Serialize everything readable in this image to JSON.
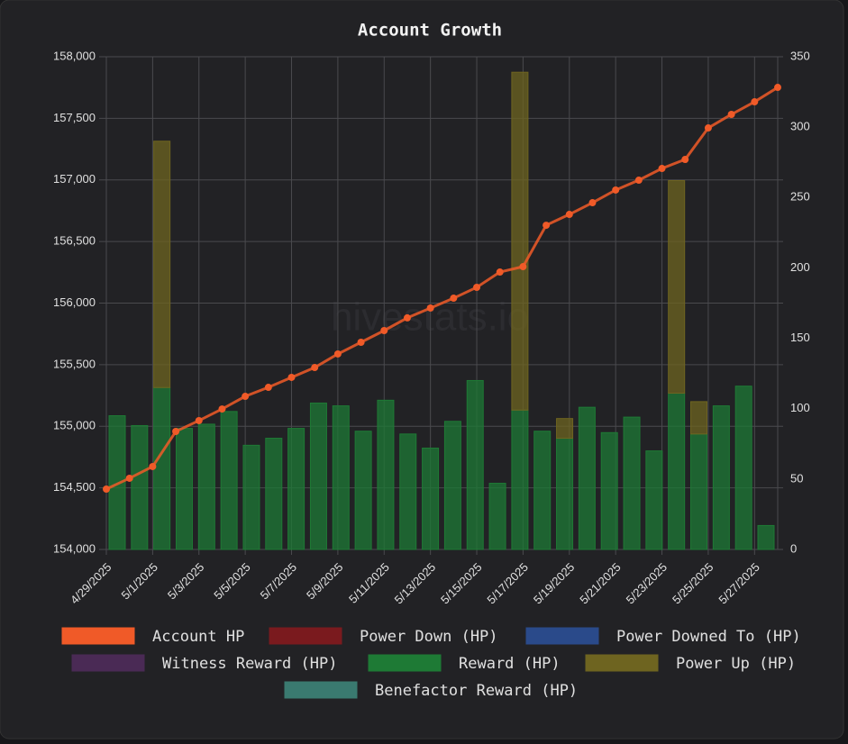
{
  "chart_data": {
    "type": "bar",
    "title": "Account Growth",
    "watermark": "hivestats.io",
    "categories": [
      "4/29/2025",
      null,
      "5/1/2025",
      null,
      "5/3/2025",
      null,
      "5/5/2025",
      null,
      "5/7/2025",
      null,
      "5/9/2025",
      null,
      "5/11/2025",
      null,
      "5/13/2025",
      null,
      "5/15/2025",
      null,
      "5/17/2025",
      null,
      "5/19/2025",
      null,
      "5/21/2025",
      null,
      "5/23/2025",
      null,
      "5/25/2025",
      null,
      "5/27/2025",
      null
    ],
    "ylim": [
      154000,
      158000
    ],
    "yticks": [
      {
        "value": 154000,
        "label": "154,000"
      },
      {
        "value": 154500,
        "label": "154,500"
      },
      {
        "value": 155000,
        "label": "155,000"
      },
      {
        "value": 155500,
        "label": "155,500"
      },
      {
        "value": 156000,
        "label": "156,000"
      },
      {
        "value": 156500,
        "label": "156,500"
      },
      {
        "value": 157000,
        "label": "157,000"
      },
      {
        "value": 157500,
        "label": "157,500"
      },
      {
        "value": 158000,
        "label": "158,000"
      }
    ],
    "y2lim": [
      0,
      350
    ],
    "y2ticks": [
      0,
      50,
      100,
      150,
      200,
      250,
      300,
      350
    ],
    "grid": true,
    "series": [
      {
        "name": "Account HP",
        "color": "#f05a28",
        "type": "line",
        "values": [
          154490,
          154578,
          154673,
          154958,
          155046,
          155140,
          155243,
          155316,
          155397,
          155477,
          155587,
          155682,
          155777,
          155880,
          155960,
          156040,
          156128,
          156252,
          156296,
          156632,
          156720,
          156815,
          156918,
          156998,
          157093,
          157166,
          157422,
          157532,
          157634,
          157751
        ]
      },
      {
        "name": "Power Down (HP)",
        "color": "#7a1a1e"
      },
      {
        "name": "Power Downed To (HP)",
        "color": "#2a4a8a"
      },
      {
        "name": "Witness Reward (HP)",
        "color": "#4a2a55"
      },
      {
        "name": "Reward (HP)",
        "color": "#1e7a35",
        "axis": "y2",
        "values": [
          95,
          88,
          115,
          86,
          89,
          98,
          74,
          79,
          86,
          104,
          102,
          84,
          106,
          82,
          72,
          91,
          120,
          47,
          99,
          84,
          79,
          101,
          83,
          94,
          70,
          111,
          82,
          102,
          116,
          17
        ]
      },
      {
        "name": "Power Up (HP)",
        "color": "#6e6420",
        "axis": "y2",
        "values": [
          null,
          null,
          175,
          null,
          null,
          null,
          null,
          null,
          null,
          null,
          null,
          null,
          null,
          null,
          null,
          null,
          null,
          null,
          240,
          null,
          14,
          null,
          null,
          null,
          null,
          151,
          23,
          null,
          null,
          null
        ]
      },
      {
        "name": "Benefactor Reward (HP)",
        "color": "#3a7a70"
      }
    ]
  }
}
